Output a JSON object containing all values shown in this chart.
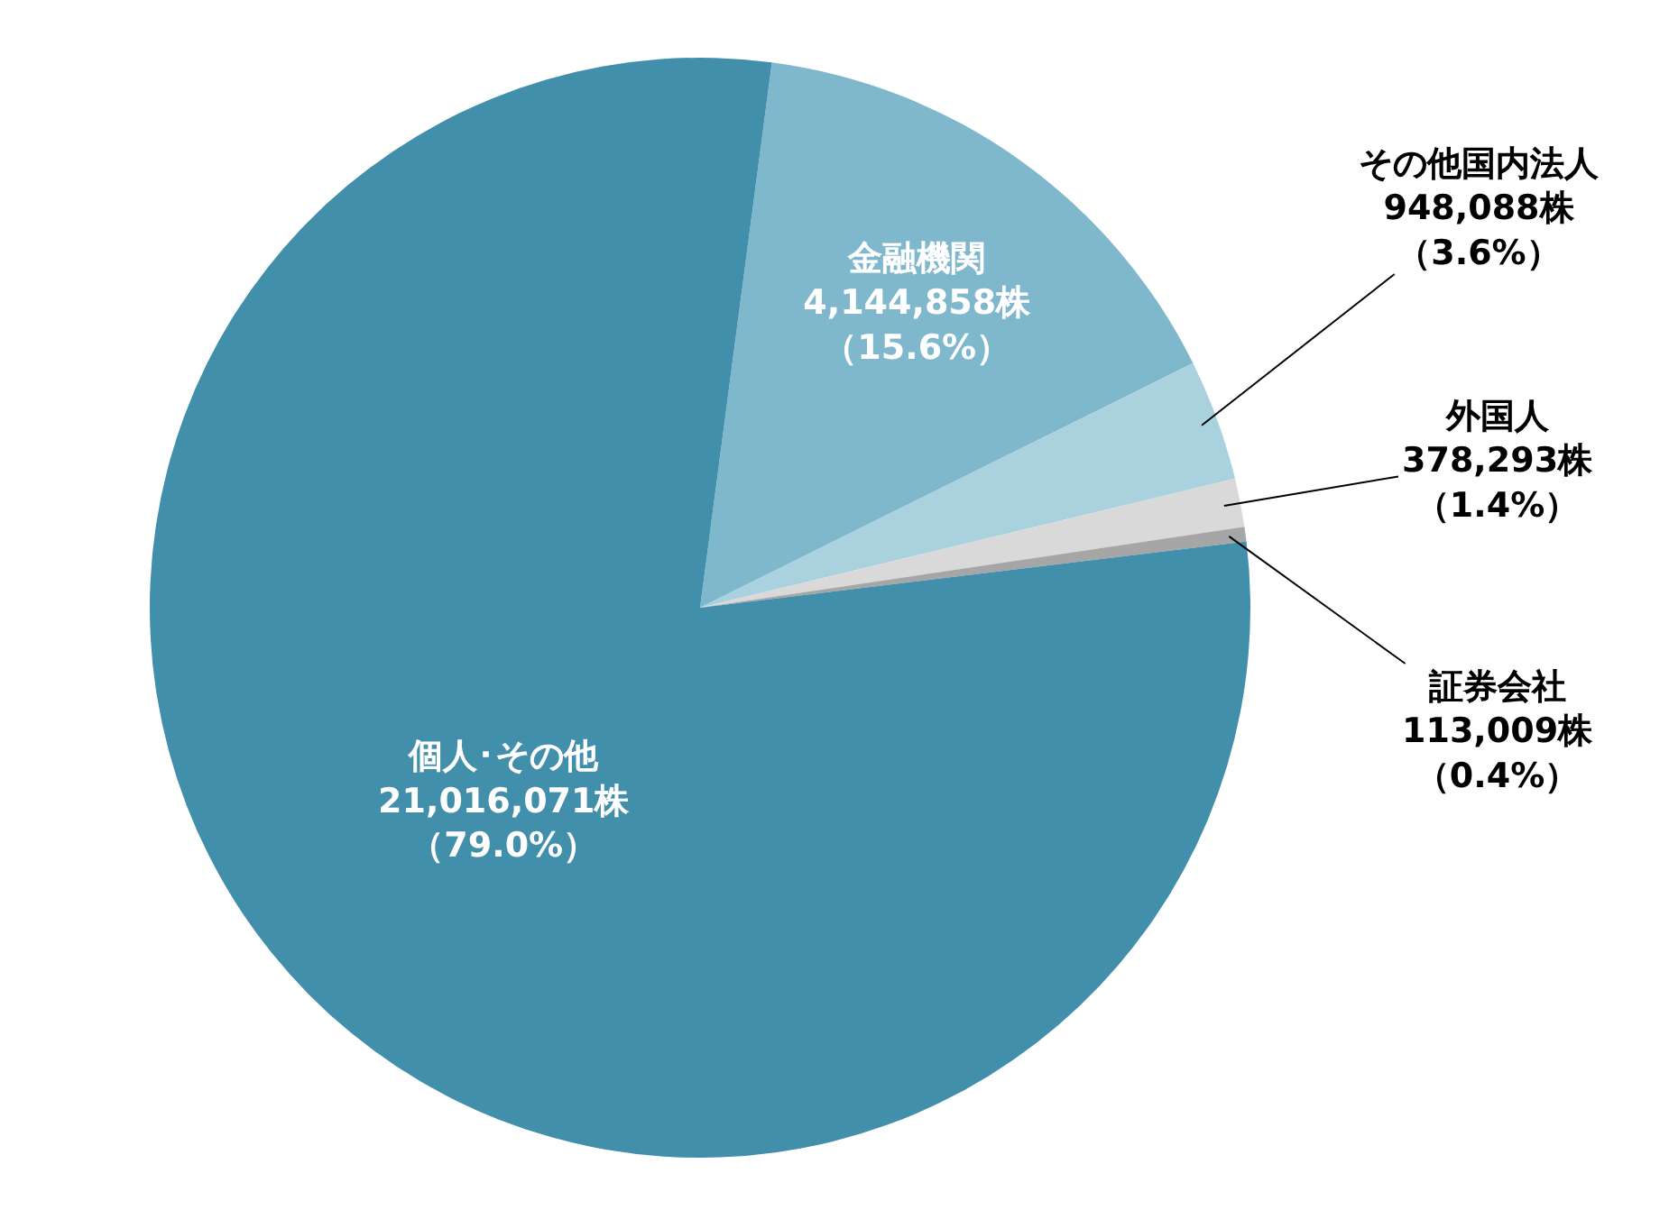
{
  "chart_data": {
    "type": "pie",
    "categories": [
      "金融機関",
      "その他国内法人",
      "外国人",
      "証券会社",
      "個人･その他"
    ],
    "values": [
      4144858,
      948088,
      378293,
      113009,
      21016071
    ],
    "colors": [
      "#7fb8cc",
      "#a9d1de",
      "#d9d9d9",
      "#a6a6a6",
      "#428fab"
    ],
    "value_labels": [
      "4,144,858株（15.6%）",
      "948,088株（3.6%）",
      "378,293株（1.4%）",
      "113,009株（0.4%）",
      "21,016,071株（79.0%）"
    ],
    "legend": false
  }
}
